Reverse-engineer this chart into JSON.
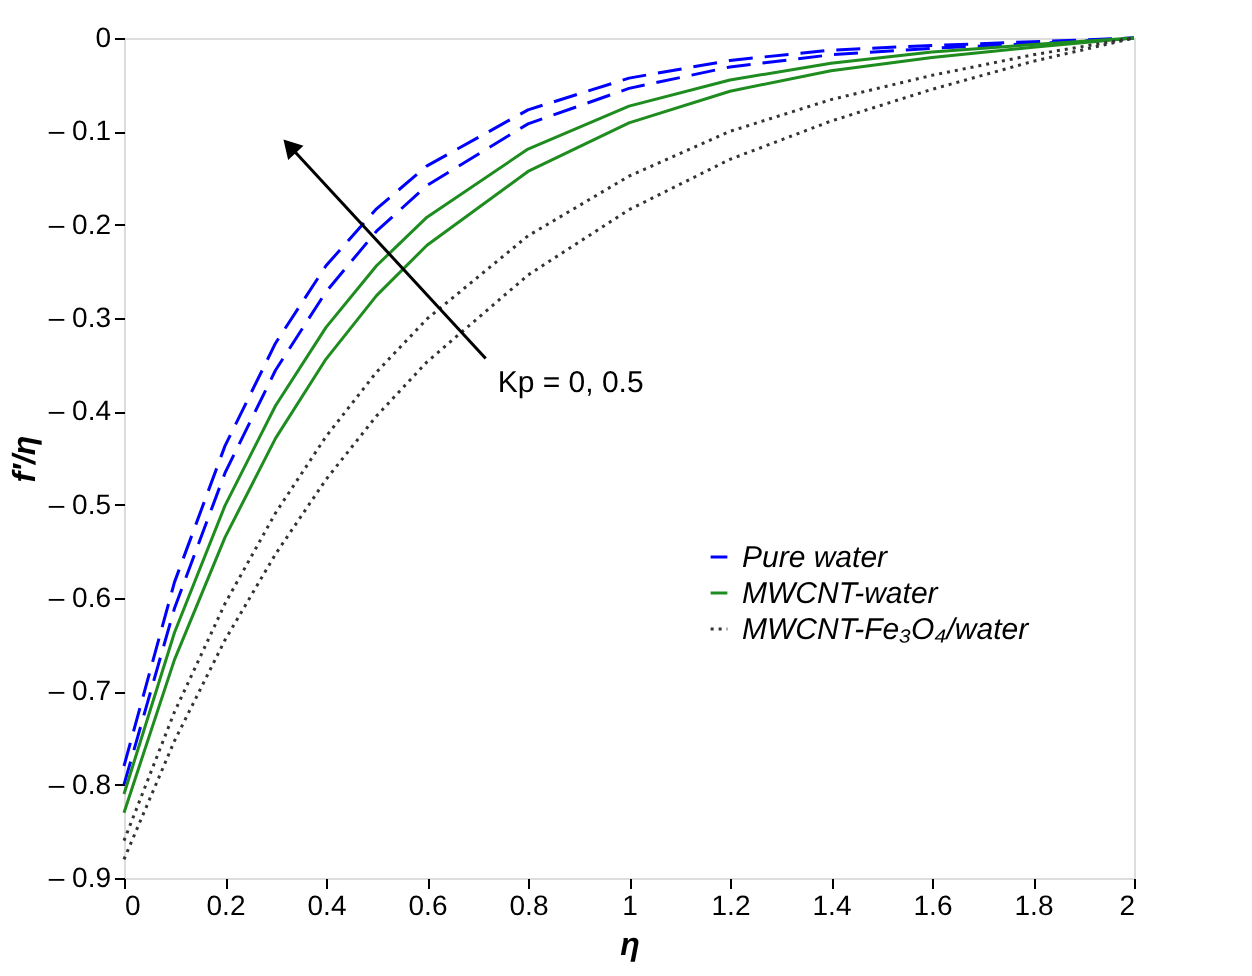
{
  "chart_data": {
    "type": "line",
    "xlabel": "η",
    "ylabel": "f′/η",
    "x": [
      0,
      0.1,
      0.2,
      0.3,
      0.4,
      0.5,
      0.6,
      0.8,
      1.0,
      1.2,
      1.4,
      1.6,
      1.8,
      2.0
    ],
    "series": [
      {
        "name": "Pure water",
        "color": "#0000ff",
        "line_style": "dashed",
        "values": [
          -0.78,
          -0.583,
          -0.437,
          -0.327,
          -0.244,
          -0.183,
          -0.137,
          -0.077,
          -0.043,
          -0.024,
          -0.013,
          -0.008,
          -0.004,
          0
        ]
      },
      {
        "color": "#0000ff",
        "line_style": "dashed",
        "values": [
          -0.8,
          -0.611,
          -0.466,
          -0.356,
          -0.272,
          -0.207,
          -0.158,
          -0.092,
          -0.054,
          -0.031,
          -0.018,
          -0.011,
          -0.006,
          0
        ]
      },
      {
        "name": "MWCNT-water",
        "color": "#1e8c1e",
        "line_style": "solid",
        "values": [
          -0.81,
          -0.637,
          -0.501,
          -0.394,
          -0.31,
          -0.244,
          -0.192,
          -0.119,
          -0.073,
          -0.045,
          -0.027,
          -0.015,
          -0.007,
          0
        ]
      },
      {
        "color": "#1e8c1e",
        "line_style": "solid",
        "values": [
          -0.83,
          -0.666,
          -0.535,
          -0.429,
          -0.344,
          -0.276,
          -0.222,
          -0.143,
          -0.091,
          -0.057,
          -0.035,
          -0.021,
          -0.01,
          0
        ]
      },
      {
        "name": "MWCNT-Fe₃O₄/water",
        "color": "#333333",
        "line_style": "dotted",
        "values": [
          -0.86,
          -0.722,
          -0.606,
          -0.509,
          -0.427,
          -0.358,
          -0.301,
          -0.212,
          -0.148,
          -0.1,
          -0.066,
          -0.04,
          -0.018,
          0
        ]
      },
      {
        "color": "#333333",
        "line_style": "dotted",
        "values": [
          -0.88,
          -0.753,
          -0.645,
          -0.553,
          -0.473,
          -0.405,
          -0.347,
          -0.254,
          -0.184,
          -0.13,
          -0.089,
          -0.055,
          -0.025,
          0
        ]
      }
    ],
    "annotations": [
      "Kp = 0, 0.5"
    ],
    "xlim": [
      0,
      2
    ],
    "ylim": [
      -0.9,
      0
    ],
    "xticks": [
      {
        "value": 0,
        "label": "0"
      },
      0.2,
      0.4,
      0.6,
      0.8,
      {
        "value": 1,
        "label": "1"
      },
      1.2,
      1.4,
      1.6,
      1.8,
      {
        "value": 2,
        "label": "2"
      }
    ],
    "yticks": [
      {
        "value": 0,
        "label": "0"
      },
      {
        "value": -0.1,
        "label": "– 0.1"
      },
      {
        "value": -0.2,
        "label": "– 0.2"
      },
      {
        "value": -0.3,
        "label": "– 0.3"
      },
      {
        "value": -0.4,
        "label": "– 0.4"
      },
      {
        "value": -0.5,
        "label": "– 0.5"
      },
      {
        "value": -0.6,
        "label": "– 0.6"
      },
      {
        "value": -0.7,
        "label": "– 0.7"
      },
      {
        "value": -0.8,
        "label": "– 0.8"
      },
      {
        "value": -0.9,
        "label": "– 0.9"
      }
    ],
    "grid": false,
    "legend": "right",
    "marker": "none"
  }
}
